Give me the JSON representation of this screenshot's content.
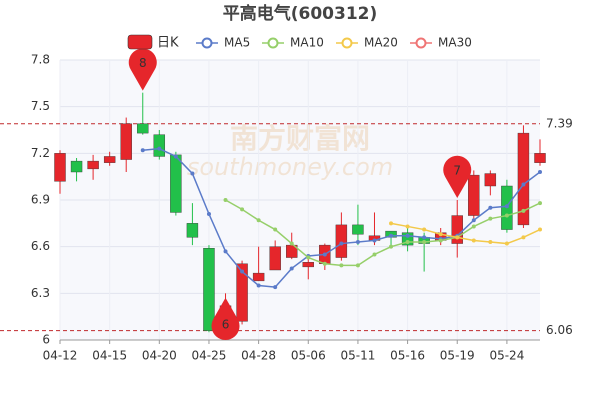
{
  "chart_data": {
    "type": "candlestick",
    "title": "平高电气(600312)",
    "watermark": [
      "南方财富网",
      "southmoney.com"
    ],
    "categories": [
      "04-12",
      null,
      null,
      "04-15",
      null,
      null,
      "04-20",
      null,
      null,
      "04-25",
      null,
      null,
      "04-28",
      null,
      null,
      "05-06",
      null,
      null,
      "05-11",
      null,
      null,
      "05-16",
      null,
      null,
      "05-19",
      null,
      null,
      "05-24",
      null,
      null
    ],
    "ylim": [
      6,
      7.8
    ],
    "yticks": [
      6,
      6.3,
      6.6,
      6.9,
      7.2,
      7.5,
      7.8
    ],
    "grid": true,
    "series": [
      {
        "name": "日K",
        "type": "candlestick",
        "color": "#e5262b",
        "down_color": "#22c04a",
        "open": [
          7.02,
          7.15,
          7.1,
          7.14,
          7.16,
          7.39,
          7.32,
          7.19,
          6.75,
          6.59,
          6.15,
          6.12,
          6.38,
          6.45,
          6.53,
          6.47,
          6.49,
          6.53,
          6.74,
          6.64,
          6.7,
          6.69,
          6.66,
          6.64,
          6.62,
          6.8,
          6.99,
          6.99,
          6.74,
          7.14
        ],
        "high": [
          7.22,
          7.17,
          7.19,
          7.21,
          7.43,
          7.59,
          7.35,
          7.21,
          6.88,
          6.61,
          6.3,
          6.51,
          6.6,
          6.64,
          6.69,
          6.55,
          6.62,
          6.82,
          6.87,
          6.82,
          6.7,
          6.72,
          6.69,
          6.72,
          6.9,
          7.09,
          7.09,
          7.03,
          7.38,
          7.29
        ],
        "low": [
          6.94,
          7.02,
          7.03,
          7.12,
          7.08,
          7.32,
          7.16,
          6.8,
          6.61,
          6.05,
          6.04,
          6.1,
          6.38,
          6.45,
          6.52,
          6.39,
          6.45,
          6.51,
          6.61,
          6.61,
          6.61,
          6.57,
          6.44,
          6.61,
          6.53,
          6.78,
          6.93,
          6.69,
          6.72,
          7.12
        ],
        "close": [
          7.2,
          7.08,
          7.15,
          7.18,
          7.39,
          7.33,
          7.18,
          6.82,
          6.66,
          6.06,
          6.22,
          6.49,
          6.43,
          6.6,
          6.61,
          6.5,
          6.61,
          6.74,
          6.68,
          6.67,
          6.66,
          6.61,
          6.62,
          6.69,
          6.8,
          7.06,
          7.07,
          6.71,
          7.33,
          7.2
        ]
      },
      {
        "name": "MA5",
        "type": "line",
        "color": "#5b7bc9",
        "values": [
          null,
          null,
          null,
          null,
          null,
          7.22,
          7.23,
          7.18,
          7.07,
          6.81,
          6.57,
          6.44,
          6.35,
          6.34,
          6.46,
          6.54,
          6.55,
          6.62,
          6.63,
          6.64,
          6.67,
          6.67,
          6.66,
          6.65,
          6.67,
          6.77,
          6.85,
          6.86,
          7.0,
          7.08
        ]
      },
      {
        "name": "MA10",
        "type": "line",
        "color": "#96cf6a",
        "values": [
          null,
          null,
          null,
          null,
          null,
          null,
          null,
          null,
          null,
          null,
          6.9,
          6.84,
          6.77,
          6.71,
          6.62,
          6.53,
          6.49,
          6.48,
          6.48,
          6.55,
          6.6,
          6.63,
          6.63,
          6.64,
          6.66,
          6.73,
          6.78,
          6.8,
          6.83,
          6.88
        ]
      },
      {
        "name": "MA20",
        "type": "line",
        "color": "#f3c94a",
        "values": [
          null,
          null,
          null,
          null,
          null,
          null,
          null,
          null,
          null,
          null,
          null,
          null,
          null,
          null,
          null,
          null,
          null,
          null,
          null,
          null,
          6.75,
          6.73,
          6.71,
          6.68,
          6.66,
          6.64,
          6.63,
          6.62,
          6.66,
          6.71
        ]
      },
      {
        "name": "MA30",
        "type": "line",
        "color": "#ef7474",
        "values": [
          null,
          null,
          null,
          null,
          null,
          null,
          null,
          null,
          null,
          null,
          null,
          null,
          null,
          null,
          null,
          null,
          null,
          null,
          null,
          null,
          null,
          null,
          null,
          null,
          null,
          null,
          null,
          null,
          null,
          null
        ]
      }
    ],
    "reference_lines": [
      {
        "value": 7.39,
        "color": "#c0282b"
      },
      {
        "value": 6.06,
        "color": "#c0282b"
      }
    ],
    "pins": [
      {
        "label": "8",
        "index": 5,
        "at": "high"
      },
      {
        "label": "6",
        "index": 10,
        "at": "low"
      },
      {
        "label": "7",
        "index": 24,
        "at": "high"
      }
    ]
  }
}
